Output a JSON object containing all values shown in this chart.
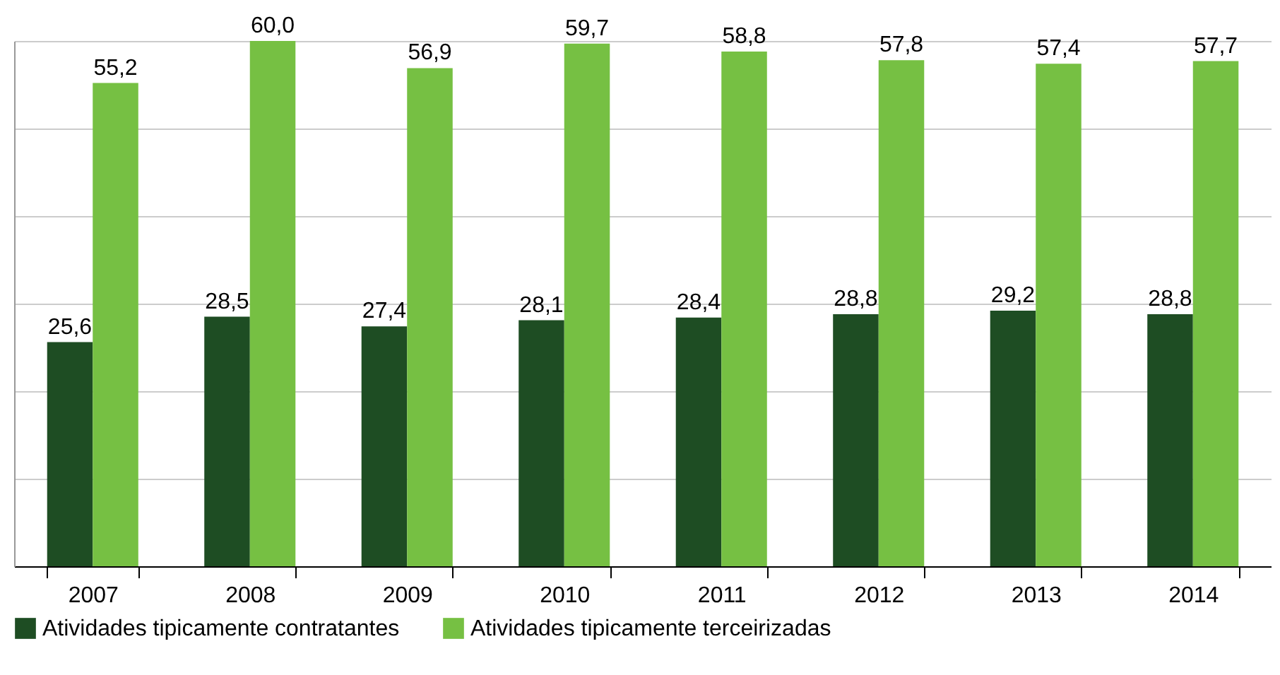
{
  "chart_data": {
    "type": "bar",
    "categories": [
      "2007",
      "2008",
      "2009",
      "2010",
      "2011",
      "2012",
      "2013",
      "2014"
    ],
    "series": [
      {
        "name": "Atividades tipicamente contratantes",
        "color": "#1e4d23",
        "values": [
          25.6,
          28.5,
          27.4,
          28.1,
          28.4,
          28.8,
          29.2,
          28.8
        ],
        "value_labels": [
          "25,6",
          "28,5",
          "27,4",
          "28,1",
          "28,4",
          "28,8",
          "29,2",
          "28,8"
        ]
      },
      {
        "name": "Atividades tipicamente terceirizadas",
        "color": "#76c043",
        "values": [
          55.2,
          60.0,
          56.9,
          59.7,
          58.8,
          57.8,
          57.4,
          57.7
        ],
        "value_labels": [
          "55,2",
          "60,0",
          "56,9",
          "59,7",
          "58,8",
          "57,8",
          "57,4",
          "57,7"
        ]
      }
    ],
    "tick_labels": "x",
    "grid": "y",
    "legend": "bottom"
  }
}
